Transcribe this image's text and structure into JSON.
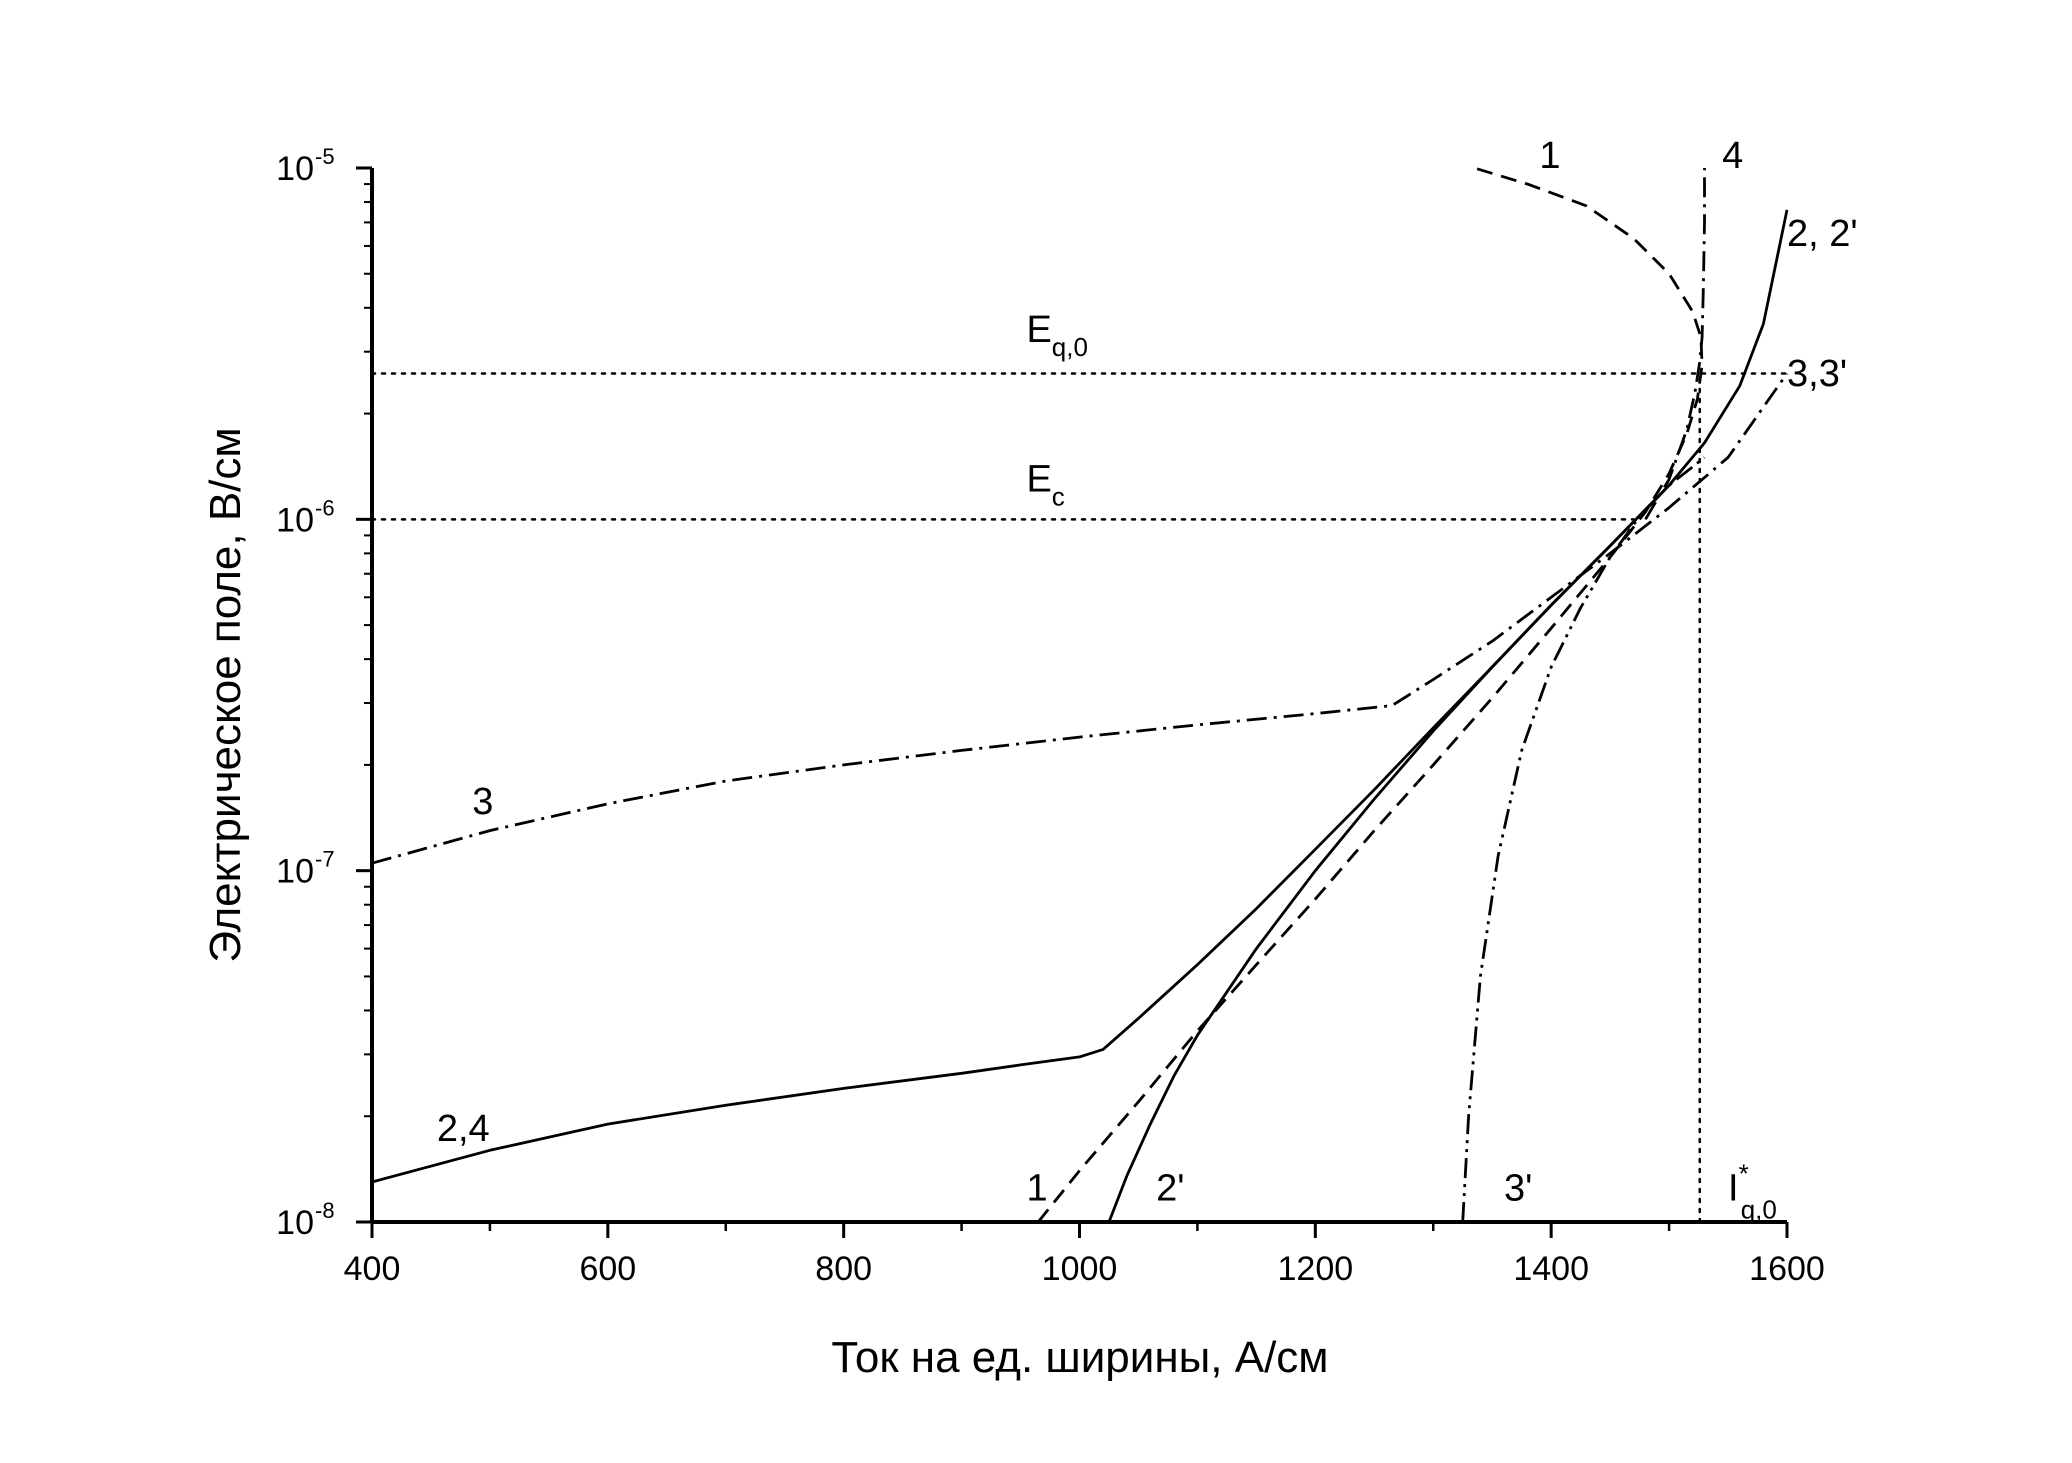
{
  "chart_data": {
    "type": "line",
    "title": "",
    "xlabel": "Ток на ед. ширины, А/см",
    "ylabel": "Электрическое поле, В/см",
    "xlim": [
      400,
      1600
    ],
    "ylim": [
      1e-08,
      1e-05
    ],
    "yscale": "log",
    "grid": false,
    "x_ticks": [
      {
        "value": 400,
        "label": "400"
      },
      {
        "value": 600,
        "label": "600"
      },
      {
        "value": 800,
        "label": "800"
      },
      {
        "value": 1000,
        "label": "1000"
      },
      {
        "value": 1200,
        "label": "1200"
      },
      {
        "value": 1400,
        "label": "1400"
      },
      {
        "value": 1600,
        "label": "1600"
      }
    ],
    "y_ticks": [
      {
        "value": 1e-08,
        "base": "10",
        "exp": "-8"
      },
      {
        "value": 1e-07,
        "base": "10",
        "exp": "-7"
      },
      {
        "value": 1e-06,
        "base": "10",
        "exp": "-6"
      },
      {
        "value": 1e-05,
        "base": "10",
        "exp": "-5"
      }
    ],
    "series": [
      {
        "id": "1",
        "style": "dashed",
        "x": [
          965,
          1000,
          1050,
          1100,
          1150,
          1200,
          1250,
          1300,
          1350,
          1400,
          1450,
          1480,
          1500,
          1515,
          1524,
          1528,
          1527,
          1520,
          1500,
          1470,
          1430,
          1380,
          1335
        ],
        "y": [
          1e-08,
          1.4e-08,
          2.2e-08,
          3.5e-08,
          5.4e-08,
          8.3e-08,
          1.3e-07,
          2e-07,
          3.1e-07,
          4.9e-07,
          7.8e-07,
          1.05e-06,
          1.35e-06,
          1.75e-06,
          2.2e-06,
          2.75e-06,
          3.3e-06,
          3.9e-06,
          5e-06,
          6.3e-06,
          7.8e-06,
          9e-06,
          1e-05
        ]
      },
      {
        "id": "2,4",
        "style": "solid",
        "x": [
          400,
          500,
          600,
          700,
          800,
          900,
          950,
          1000,
          1020,
          1050,
          1100,
          1150,
          1200,
          1250,
          1300,
          1350,
          1400,
          1450,
          1500,
          1530,
          1560,
          1580,
          1600
        ],
        "y": [
          1.3e-08,
          1.6e-08,
          1.9e-08,
          2.15e-08,
          2.4e-08,
          2.65e-08,
          2.8e-08,
          2.95e-08,
          3.1e-08,
          3.8e-08,
          5.4e-08,
          7.8e-08,
          1.15e-07,
          1.7e-07,
          2.55e-07,
          3.8e-07,
          5.7e-07,
          8.4e-07,
          1.25e-06,
          1.65e-06,
          2.4e-06,
          3.6e-06,
          7.6e-06
        ]
      },
      {
        "id": "2'",
        "style": "solid",
        "x": [
          1025,
          1040,
          1060,
          1080,
          1100,
          1150,
          1200,
          1250,
          1300,
          1350,
          1400,
          1450,
          1500
        ],
        "y": [
          1e-08,
          1.35e-08,
          1.9e-08,
          2.6e-08,
          3.4e-08,
          6e-08,
          1e-07,
          1.6e-07,
          2.5e-07,
          3.8e-07,
          5.7e-07,
          8.4e-07,
          1.25e-06
        ]
      },
      {
        "id": "3",
        "style": "dash-dot",
        "x": [
          400,
          500,
          600,
          700,
          800,
          900,
          1000,
          1100,
          1200,
          1265,
          1300,
          1350,
          1400,
          1450,
          1500,
          1550,
          1600
        ],
        "y": [
          1.05e-07,
          1.3e-07,
          1.55e-07,
          1.8e-07,
          2e-07,
          2.2e-07,
          2.4e-07,
          2.6e-07,
          2.8e-07,
          2.95e-07,
          3.5e-07,
          4.5e-07,
          6e-07,
          8e-07,
          1.08e-06,
          1.5e-06,
          2.6e-06
        ]
      },
      {
        "id": "3'",
        "style": "dash-dot-dot",
        "x": [
          1325,
          1330,
          1340,
          1355,
          1375,
          1400,
          1425,
          1450,
          1475,
          1500,
          1530
        ],
        "y": [
          1e-08,
          2e-08,
          5e-08,
          1.1e-07,
          2.2e-07,
          3.8e-07,
          5.6e-07,
          7.8e-07,
          1.02e-06,
          1.25e-06,
          1.5e-06
        ]
      },
      {
        "id": "4",
        "style": "dash-dot",
        "x": [
          1480,
          1500,
          1515,
          1522,
          1526,
          1528,
          1529,
          1530,
          1530
        ],
        "y": [
          1e-06,
          1.3e-06,
          1.8e-06,
          2.3e-06,
          2.8e-06,
          3.3e-06,
          4.5e-06,
          7e-06,
          1e-05
        ]
      }
    ],
    "reference_lines": [
      {
        "id": "Eq0",
        "orientation": "horizontal",
        "value": 2.6e-06,
        "from": 400,
        "to": 1600
      },
      {
        "id": "Ec",
        "orientation": "horizontal",
        "value": 1e-06,
        "from": 400,
        "to": 1470
      },
      {
        "id": "Iq0",
        "orientation": "vertical",
        "value": 1526,
        "from": 1e-08,
        "to": 2.6e-06
      }
    ],
    "annotations": [
      {
        "id": "label-1-top",
        "main": "1",
        "sub": "",
        "sup": "",
        "x": 1390,
        "y": 1e-05
      },
      {
        "id": "label-4-top",
        "main": "4",
        "sub": "",
        "sup": "",
        "x": 1545,
        "y": 1e-05
      },
      {
        "id": "label-2-2p",
        "main": "2, 2'",
        "sub": "",
        "sup": "",
        "x": 1600,
        "y": 6e-06
      },
      {
        "id": "label-3-3p",
        "main": "3,3'",
        "sub": "",
        "sup": "",
        "x": 1600,
        "y": 2.4e-06
      },
      {
        "id": "label-Eq0",
        "main": "E",
        "sub": "q,0",
        "sup": "",
        "x": 955,
        "y": 3.2e-06
      },
      {
        "id": "label-Ec",
        "main": "E",
        "sub": "c",
        "sup": "",
        "x": 955,
        "y": 1.2e-06
      },
      {
        "id": "label-3",
        "main": "3",
        "sub": "",
        "sup": "",
        "x": 485,
        "y": 1.45e-07
      },
      {
        "id": "label-2-4",
        "main": "2,4",
        "sub": "",
        "sup": "",
        "x": 455,
        "y": 1.7e-08
      },
      {
        "id": "label-1-bottom",
        "main": "1",
        "sub": "",
        "sup": "",
        "x": 955,
        "y": 1.15e-08
      },
      {
        "id": "label-2p",
        "main": "2'",
        "sub": "",
        "sup": "",
        "x": 1065,
        "y": 1.15e-08
      },
      {
        "id": "label-3p",
        "main": "3'",
        "sub": "",
        "sup": "",
        "x": 1360,
        "y": 1.15e-08
      },
      {
        "id": "label-Iq0",
        "main": "I",
        "sub": "q,0",
        "sup": "*",
        "x": 1550,
        "y": 1.15e-08
      }
    ]
  }
}
